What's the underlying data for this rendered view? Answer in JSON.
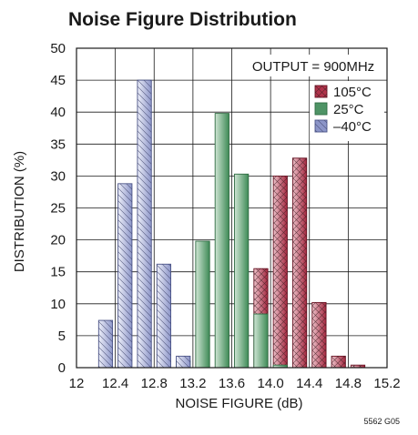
{
  "chart_data": {
    "type": "bar",
    "title": "Noise Figure Distribution",
    "xlabel": "NOISE FIGURE (dB)",
    "ylabel": "DISTRIBUTION (%)",
    "xlim": [
      12,
      15.2
    ],
    "ylim": [
      0,
      50
    ],
    "x_ticks": [
      "12",
      "12.4",
      "12.8",
      "13.2",
      "13.6",
      "14.0",
      "14.4",
      "14.8",
      "15.2"
    ],
    "y_ticks": [
      "0",
      "5",
      "10",
      "15",
      "20",
      "25",
      "30",
      "35",
      "40",
      "45",
      "50"
    ],
    "bin_width": 0.2,
    "grid": true,
    "legend_position": "top-right",
    "annotation": "OUTPUT = 900MHz",
    "footnote": "5562 G05",
    "series": [
      {
        "name": "105°C",
        "color": "#b0324a",
        "pattern": "crosshatch",
        "bins": [
          {
            "x_start": 13.8,
            "value": 15.5
          },
          {
            "x_start": 14.0,
            "value": 30
          },
          {
            "x_start": 14.2,
            "value": 32.8
          },
          {
            "x_start": 14.4,
            "value": 10.2
          },
          {
            "x_start": 14.6,
            "value": 1.8
          },
          {
            "x_start": 14.8,
            "value": 0.4
          }
        ]
      },
      {
        "name": "25°C",
        "color": "#4f9466",
        "pattern": "solid",
        "bins": [
          {
            "x_start": 13.0,
            "value": 1.1
          },
          {
            "x_start": 13.2,
            "value": 19.8
          },
          {
            "x_start": 13.4,
            "value": 39.8
          },
          {
            "x_start": 13.6,
            "value": 30.3
          },
          {
            "x_start": 13.8,
            "value": 8.4
          },
          {
            "x_start": 14.0,
            "value": 0.4
          }
        ]
      },
      {
        "name": "–40°C",
        "color": "#8c95c8",
        "pattern": "diagonal",
        "bins": [
          {
            "x_start": 12.2,
            "value": 7.4
          },
          {
            "x_start": 12.4,
            "value": 28.8
          },
          {
            "x_start": 12.6,
            "value": 45
          },
          {
            "x_start": 12.8,
            "value": 16.2
          },
          {
            "x_start": 13.0,
            "value": 1.8
          }
        ]
      }
    ]
  }
}
